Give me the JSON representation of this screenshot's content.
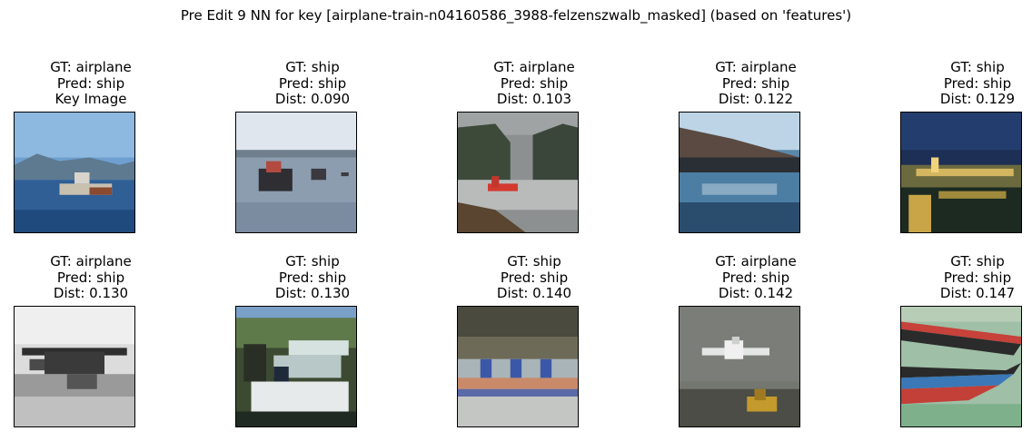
{
  "title": "Pre Edit 9 NN for key [airplane-train-n04160586_3988-felzenszwalb_masked] (based on 'features')",
  "panels": [
    {
      "gt": "GT: airplane",
      "pred": "Pred: ship",
      "info": "Key Image"
    },
    {
      "gt": "GT: ship",
      "pred": "Pred: ship",
      "info": "Dist: 0.090"
    },
    {
      "gt": "GT: airplane",
      "pred": "Pred: ship",
      "info": "Dist: 0.103"
    },
    {
      "gt": "GT: airplane",
      "pred": "Pred: ship",
      "info": "Dist: 0.122"
    },
    {
      "gt": "GT: ship",
      "pred": "Pred: ship",
      "info": "Dist: 0.129"
    },
    {
      "gt": "GT: airplane",
      "pred": "Pred: ship",
      "info": "Dist: 0.130"
    },
    {
      "gt": "GT: ship",
      "pred": "Pred: ship",
      "info": "Dist: 0.130"
    },
    {
      "gt": "GT: ship",
      "pred": "Pred: ship",
      "info": "Dist: 0.140"
    },
    {
      "gt": "GT: airplane",
      "pred": "Pred: ship",
      "info": "Dist: 0.142"
    },
    {
      "gt": "GT: ship",
      "pred": "Pred: ship",
      "info": "Dist: 0.147"
    }
  ]
}
